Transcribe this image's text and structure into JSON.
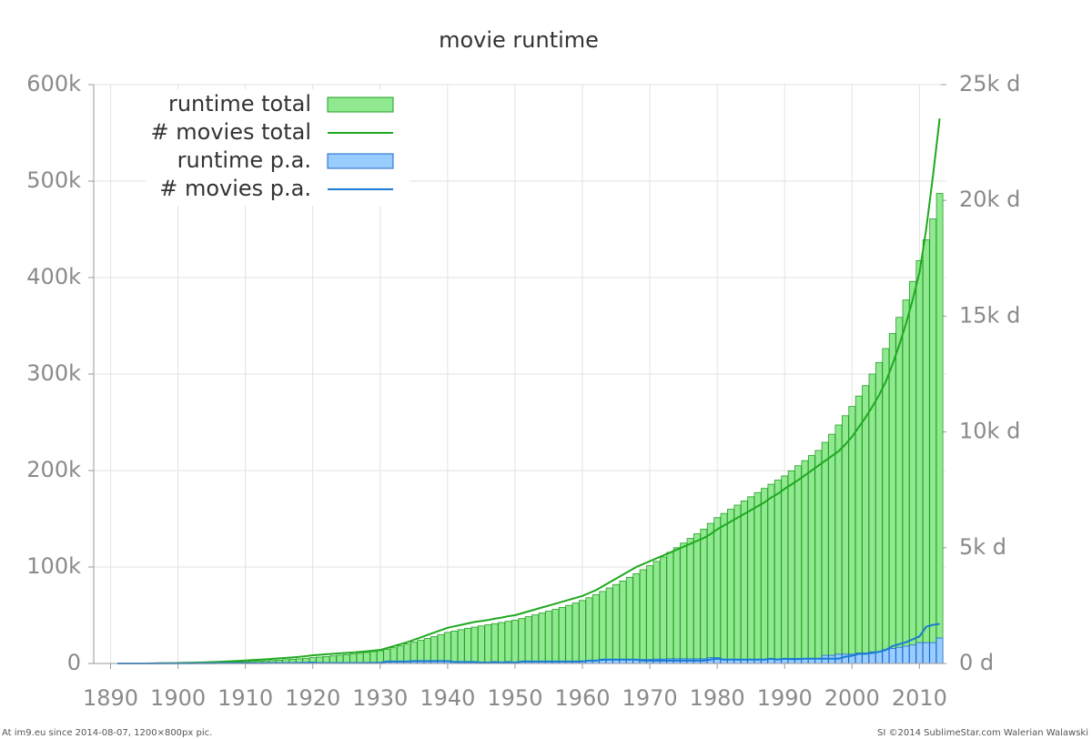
{
  "chart_data": {
    "type": "bar-line",
    "title": "movie runtime",
    "x": [
      1891,
      1892,
      1893,
      1894,
      1895,
      1896,
      1897,
      1898,
      1899,
      1900,
      1901,
      1902,
      1903,
      1904,
      1905,
      1906,
      1907,
      1908,
      1909,
      1910,
      1911,
      1912,
      1913,
      1914,
      1915,
      1916,
      1917,
      1918,
      1919,
      1920,
      1921,
      1922,
      1923,
      1924,
      1925,
      1926,
      1927,
      1928,
      1929,
      1930,
      1931,
      1932,
      1933,
      1934,
      1935,
      1936,
      1937,
      1938,
      1939,
      1940,
      1941,
      1942,
      1943,
      1944,
      1945,
      1946,
      1947,
      1948,
      1949,
      1950,
      1951,
      1952,
      1953,
      1954,
      1955,
      1956,
      1957,
      1958,
      1959,
      1960,
      1961,
      1962,
      1963,
      1964,
      1965,
      1966,
      1967,
      1968,
      1969,
      1970,
      1971,
      1972,
      1973,
      1974,
      1975,
      1976,
      1977,
      1978,
      1979,
      1980,
      1981,
      1982,
      1983,
      1984,
      1985,
      1986,
      1987,
      1988,
      1989,
      1990,
      1991,
      1992,
      1993,
      1994,
      1995,
      1996,
      1997,
      1998,
      1999,
      2000,
      2001,
      2002,
      2003,
      2004,
      2005,
      2006,
      2007,
      2008,
      2009,
      2010,
      2011,
      2012,
      2013
    ],
    "series": [
      {
        "name": "runtime total",
        "kind": "bar",
        "axis": "y2",
        "color": "#90e890",
        "stroke": "#22a022",
        "values": [
          0,
          0,
          0,
          0,
          1,
          2,
          4,
          6,
          9,
          12,
          15,
          19,
          23,
          28,
          33,
          39,
          46,
          54,
          63,
          73,
          85,
          98,
          112,
          128,
          145,
          163,
          182,
          203,
          225,
          250,
          275,
          300,
          325,
          350,
          380,
          410,
          440,
          475,
          510,
          550,
          610,
          680,
          760,
          840,
          920,
          1000,
          1080,
          1160,
          1250,
          1340,
          1400,
          1460,
          1520,
          1570,
          1620,
          1670,
          1720,
          1770,
          1820,
          1870,
          1940,
          2020,
          2100,
          2180,
          2260,
          2340,
          2420,
          2510,
          2610,
          2720,
          2840,
          2970,
          3110,
          3260,
          3410,
          3560,
          3720,
          3880,
          4050,
          4220,
          4410,
          4600,
          4800,
          5000,
          5200,
          5400,
          5600,
          5800,
          6050,
          6300,
          6480,
          6660,
          6840,
          7020,
          7200,
          7380,
          7560,
          7740,
          7920,
          8100,
          8320,
          8540,
          8760,
          8980,
          9200,
          9550,
          9900,
          10300,
          10700,
          11100,
          11550,
          12000,
          12500,
          13000,
          13600,
          14250,
          14950,
          15700,
          16500,
          17400,
          18300,
          19200,
          20300
        ]
      },
      {
        "name": "# movies total",
        "kind": "line",
        "axis": "y",
        "color": "#1fa81f",
        "values": [
          0,
          0,
          0,
          0,
          50,
          100,
          200,
          300,
          400,
          500,
          650,
          800,
          1000,
          1200,
          1400,
          1700,
          2000,
          2300,
          2700,
          3100,
          3500,
          3900,
          4300,
          4800,
          5300,
          5800,
          6300,
          6900,
          7600,
          8500,
          9000,
          9500,
          10000,
          10500,
          11000,
          11500,
          12000,
          12600,
          13300,
          14000,
          16000,
          18000,
          20000,
          22000,
          24500,
          27000,
          29500,
          32000,
          34500,
          37000,
          38500,
          40000,
          41500,
          43000,
          44000,
          45000,
          46500,
          47500,
          49000,
          50000,
          52000,
          54000,
          56000,
          58000,
          60000,
          62000,
          64000,
          66000,
          68000,
          70000,
          73000,
          76000,
          80000,
          84000,
          88000,
          92000,
          96000,
          100000,
          103000,
          106000,
          109000,
          112000,
          115000,
          118000,
          121000,
          124000,
          127000,
          130000,
          134000,
          139000,
          143000,
          147000,
          151000,
          155000,
          159000,
          163000,
          167000,
          172000,
          176000,
          181000,
          185500,
          190000,
          195000,
          200000,
          205000,
          210000,
          215000,
          220000,
          227000,
          235000,
          245000,
          255000,
          266000,
          278000,
          292000,
          310000,
          330000,
          352000,
          377000,
          405000,
          450000,
          505000,
          565000
        ]
      },
      {
        "name": "runtime p.a.",
        "kind": "bar",
        "axis": "y2",
        "color": "#99ccff",
        "stroke": "#1a66cc",
        "values": [
          0,
          0,
          0,
          0,
          1,
          1,
          2,
          2,
          3,
          3,
          3,
          4,
          4,
          5,
          5,
          6,
          7,
          8,
          9,
          10,
          11,
          13,
          14,
          16,
          17,
          18,
          19,
          21,
          22,
          25,
          25,
          25,
          25,
          25,
          30,
          30,
          30,
          35,
          35,
          40,
          60,
          70,
          80,
          80,
          80,
          80,
          80,
          80,
          90,
          90,
          60,
          60,
          60,
          50,
          50,
          50,
          50,
          50,
          50,
          50,
          70,
          80,
          80,
          80,
          80,
          80,
          80,
          90,
          100,
          110,
          120,
          130,
          140,
          150,
          150,
          150,
          160,
          160,
          170,
          170,
          190,
          190,
          200,
          200,
          200,
          200,
          200,
          200,
          250,
          250,
          180,
          180,
          180,
          180,
          180,
          180,
          180,
          180,
          180,
          180,
          220,
          220,
          220,
          220,
          220,
          350,
          350,
          400,
          400,
          400,
          450,
          450,
          500,
          500,
          600,
          650,
          700,
          750,
          800,
          900,
          900,
          900,
          1100
        ]
      },
      {
        "name": "# movies p.a.",
        "kind": "line",
        "axis": "y",
        "color": "#1a7ad4",
        "values": [
          0,
          0,
          0,
          0,
          50,
          50,
          100,
          100,
          100,
          100,
          150,
          150,
          200,
          200,
          200,
          300,
          300,
          300,
          400,
          400,
          400,
          400,
          400,
          500,
          500,
          500,
          500,
          600,
          700,
          900,
          500,
          500,
          500,
          500,
          500,
          500,
          500,
          600,
          700,
          700,
          2000,
          2000,
          2000,
          2000,
          2500,
          2500,
          2500,
          2500,
          2500,
          2500,
          1500,
          1500,
          1500,
          1500,
          1000,
          1000,
          1500,
          1000,
          1500,
          1000,
          2000,
          2000,
          2000,
          2000,
          2000,
          2000,
          2000,
          2000,
          2000,
          2000,
          3000,
          3000,
          4000,
          4000,
          4000,
          4000,
          4000,
          4000,
          3000,
          3000,
          3000,
          3000,
          3000,
          3000,
          3000,
          3000,
          3000,
          3000,
          4000,
          5000,
          4000,
          4000,
          4000,
          4000,
          4000,
          4000,
          4000,
          5000,
          4000,
          5000,
          4500,
          4500,
          5000,
          5000,
          5000,
          5000,
          5000,
          5000,
          7000,
          8000,
          10000,
          10000,
          11000,
          12000,
          14000,
          18000,
          20000,
          22000,
          25000,
          28000,
          38000,
          40000,
          41000
        ]
      }
    ],
    "xlim": [
      1887.5,
      2014
    ],
    "xticks": [
      1890,
      1900,
      1910,
      1920,
      1930,
      1940,
      1950,
      1960,
      1970,
      1980,
      1990,
      2000,
      2010
    ],
    "ylim": [
      0,
      600000
    ],
    "yticks": [
      0,
      {
        "value": 100000,
        "label": "100k"
      },
      {
        "value": 200000,
        "label": "200k"
      },
      {
        "value": 300000,
        "label": "300k"
      },
      {
        "value": 400000,
        "label": "400k"
      },
      {
        "value": 500000,
        "label": "500k"
      },
      {
        "value": 600000,
        "label": "600k"
      }
    ],
    "y2lim": [
      0,
      25000
    ],
    "y2ticks": [
      {
        "value": 0,
        "label": "0  d"
      },
      {
        "value": 5000,
        "label": "5k d"
      },
      {
        "value": 10000,
        "label": "10k d"
      },
      {
        "value": 15000,
        "label": "15k d"
      },
      {
        "value": 20000,
        "label": "20k d"
      },
      {
        "value": 25000,
        "label": "25k d"
      }
    ],
    "grid": true,
    "legend": "upper left"
  },
  "footer_left": "At im9.eu since 2014-08-07, 1200×800px pic.",
  "footer_right": "SI ©2014 SublimeStar.com Walerian Walawski"
}
